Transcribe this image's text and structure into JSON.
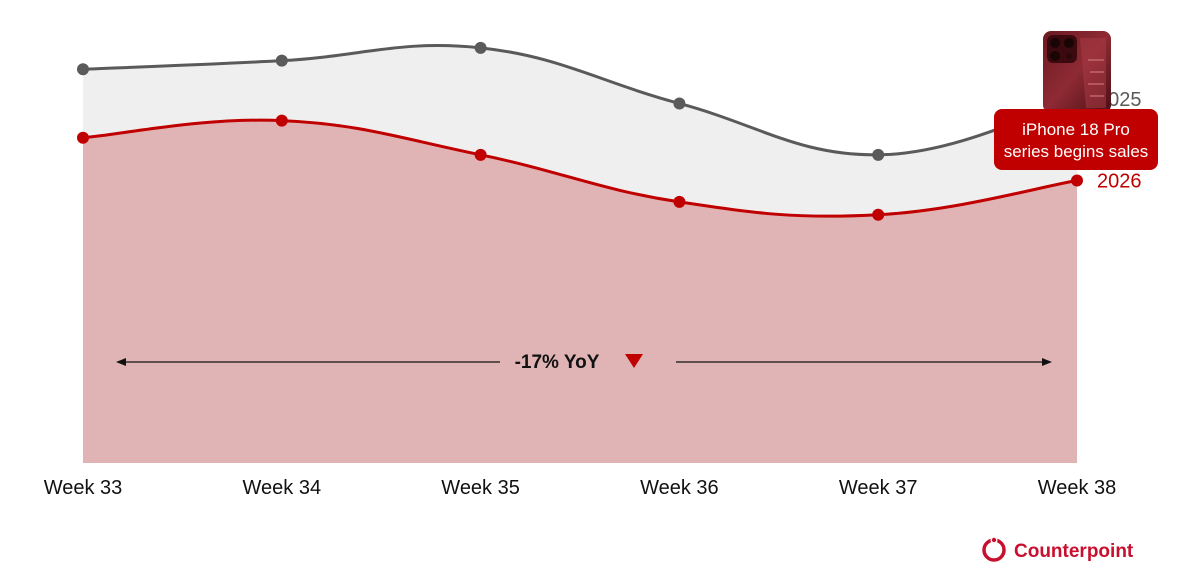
{
  "colors": {
    "series_2025": "#5a5a5a",
    "series_2026": "#c00000",
    "fill_2025": "#efefef",
    "fill_2026": "#e0b3b5",
    "callout_bg": "#c00000",
    "brand": "#c8102e"
  },
  "chart_data": {
    "type": "area",
    "categories": [
      "Week 33",
      "Week 34",
      "Week 35",
      "Week 36",
      "Week 37",
      "Week 38"
    ],
    "series": [
      {
        "name": "2025",
        "values": [
          92,
          94,
          97,
          84,
          72,
          85
        ]
      },
      {
        "name": "2026",
        "values": [
          76,
          80,
          72,
          61,
          58,
          66
        ]
      }
    ],
    "ylim": [
      0,
      100
    ],
    "grid": false,
    "y_axis_shown": false,
    "annotations": {
      "yoy_label": "-17% YoY",
      "yoy_direction": "down",
      "callout_lines": [
        "iPhone 18 Pro",
        "series begins sales"
      ],
      "callout_category": "Week 38",
      "callout_icon": "phone-icon"
    }
  },
  "brand": {
    "name": "Counterpoint",
    "logo_icon": "counterpoint-logo-icon"
  }
}
